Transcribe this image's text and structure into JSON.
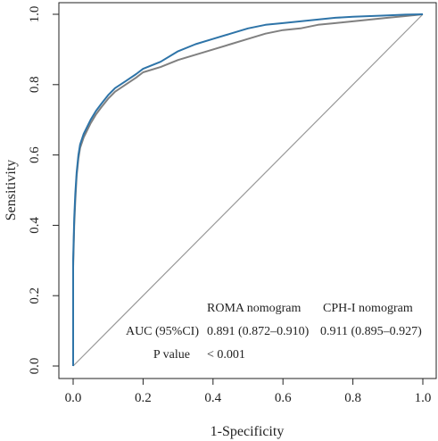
{
  "chart_data": {
    "type": "line",
    "xlabel": "1-Specificity",
    "ylabel": "Sensitivity",
    "xlim": [
      0,
      1
    ],
    "ylim": [
      0,
      1
    ],
    "x_ticks": [
      "0.0",
      "0.2",
      "0.4",
      "0.6",
      "0.8",
      "1.0"
    ],
    "y_ticks": [
      "0.0",
      "0.2",
      "0.4",
      "0.6",
      "0.8",
      "1.0"
    ],
    "grid": false,
    "reference_line": {
      "x": [
        0,
        1
      ],
      "y": [
        0,
        1
      ],
      "color": "#999999"
    },
    "series": [
      {
        "name": "ROMA nomogram",
        "color": "#808080",
        "x": [
          0,
          0,
          0.003,
          0.006,
          0.01,
          0.015,
          0.02,
          0.03,
          0.04,
          0.05,
          0.065,
          0.08,
          0.1,
          0.12,
          0.15,
          0.18,
          0.2,
          0.25,
          0.3,
          0.35,
          0.4,
          0.45,
          0.5,
          0.55,
          0.6,
          0.65,
          0.7,
          0.75,
          0.8,
          0.85,
          0.9,
          0.95,
          1.0
        ],
        "y": [
          0,
          0.28,
          0.4,
          0.47,
          0.54,
          0.59,
          0.62,
          0.65,
          0.67,
          0.69,
          0.715,
          0.735,
          0.76,
          0.78,
          0.8,
          0.82,
          0.835,
          0.85,
          0.87,
          0.885,
          0.9,
          0.915,
          0.93,
          0.945,
          0.955,
          0.96,
          0.97,
          0.975,
          0.98,
          0.985,
          0.99,
          0.995,
          1.0
        ]
      },
      {
        "name": "CPH-I nomogram",
        "color": "#2e74a8",
        "x": [
          0,
          0,
          0.003,
          0.006,
          0.01,
          0.015,
          0.02,
          0.03,
          0.04,
          0.05,
          0.065,
          0.08,
          0.1,
          0.12,
          0.15,
          0.18,
          0.2,
          0.25,
          0.3,
          0.35,
          0.4,
          0.45,
          0.5,
          0.55,
          0.6,
          0.65,
          0.7,
          0.75,
          0.8,
          0.85,
          0.9,
          0.95,
          1.0
        ],
        "y": [
          0,
          0.3,
          0.42,
          0.49,
          0.55,
          0.6,
          0.63,
          0.66,
          0.68,
          0.7,
          0.725,
          0.745,
          0.77,
          0.79,
          0.81,
          0.83,
          0.845,
          0.865,
          0.895,
          0.915,
          0.93,
          0.945,
          0.96,
          0.97,
          0.975,
          0.98,
          0.985,
          0.99,
          0.993,
          0.995,
          0.997,
          0.999,
          1.0
        ]
      }
    ]
  },
  "annotation": {
    "col_headers": [
      "ROMA nomogram",
      "CPH-I nomogram"
    ],
    "auc_label": "AUC (95%CI)",
    "auc_values": [
      "0.891 (0.872–0.910)",
      "0.911 (0.895–0.927)"
    ],
    "auc_colors": [
      "#808080",
      "#2e74a8"
    ],
    "p_label": "P value",
    "p_value": "< 0.001"
  }
}
